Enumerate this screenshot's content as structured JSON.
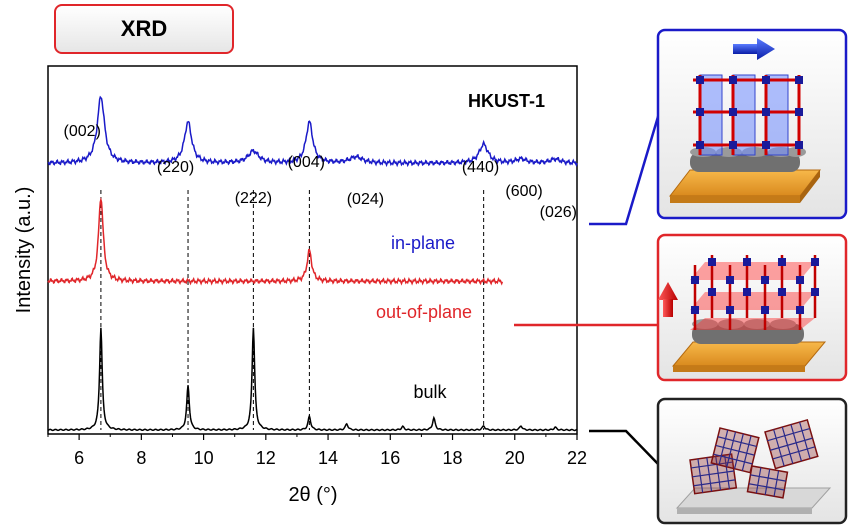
{
  "badge": "XRD",
  "chart_data": {
    "type": "line",
    "title": "HKUST-1",
    "xlabel": "2θ (°)",
    "ylabel": "Intensity (a.u.)",
    "xlim": [
      5,
      22
    ],
    "xticks": [
      6,
      8,
      10,
      12,
      14,
      16,
      18,
      20,
      22
    ],
    "grid": false,
    "series": [
      {
        "name": "in-plane",
        "color": "#1a1ac8",
        "baseline": 0.78,
        "peaks": [
          {
            "x": 6.7,
            "h": 0.195,
            "w": 0.14,
            "label": "(002)"
          },
          {
            "x": 9.5,
            "h": 0.12,
            "w": 0.14,
            "label": "(220)"
          },
          {
            "x": 11.6,
            "h": 0.035,
            "w": 0.2,
            "label": "(222)"
          },
          {
            "x": 13.4,
            "h": 0.12,
            "w": 0.13,
            "label": "(004)"
          },
          {
            "x": 14.9,
            "h": 0.018,
            "w": 0.25,
            "label": "(024)"
          },
          {
            "x": 19.0,
            "h": 0.055,
            "w": 0.17,
            "label": "(440)"
          },
          {
            "x": 20.2,
            "h": 0.012,
            "w": 0.2,
            "label": "(600)"
          },
          {
            "x": 21.3,
            "h": 0.012,
            "w": 0.2,
            "label": "(026)"
          }
        ]
      },
      {
        "name": "out-of-plane",
        "color": "#e0262a",
        "baseline": 0.435,
        "peaks": [
          {
            "x": 6.7,
            "h": 0.245,
            "w": 0.09
          },
          {
            "x": 13.4,
            "h": 0.09,
            "w": 0.09
          }
        ]
      },
      {
        "name": "bulk",
        "color": "#000000",
        "baseline": 0.0,
        "peaks": [
          {
            "x": 6.7,
            "h": 0.3,
            "w": 0.05
          },
          {
            "x": 9.5,
            "h": 0.13,
            "w": 0.05
          },
          {
            "x": 11.6,
            "h": 0.3,
            "w": 0.05
          },
          {
            "x": 13.4,
            "h": 0.04,
            "w": 0.05
          },
          {
            "x": 14.6,
            "h": 0.018,
            "w": 0.05
          },
          {
            "x": 16.4,
            "h": 0.01,
            "w": 0.05
          },
          {
            "x": 17.4,
            "h": 0.035,
            "w": 0.05
          },
          {
            "x": 19.0,
            "h": 0.012,
            "w": 0.05
          },
          {
            "x": 20.2,
            "h": 0.012,
            "w": 0.05
          },
          {
            "x": 21.3,
            "h": 0.008,
            "w": 0.05
          }
        ]
      }
    ],
    "reference_lines": [
      6.7,
      9.5,
      11.6,
      13.4,
      19.0
    ]
  }
}
